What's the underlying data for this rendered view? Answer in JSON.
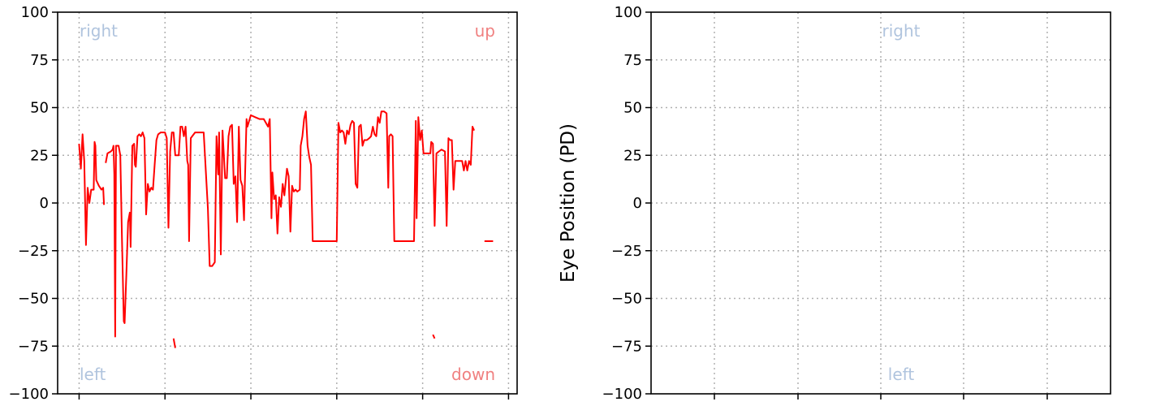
{
  "chart_data": [
    {
      "type": "line",
      "title": "",
      "xlabel": "",
      "ylabel": "",
      "ylim": [
        -100,
        100
      ],
      "xlim": [
        -0.25,
        5.1
      ],
      "yticks": [
        100,
        75,
        50,
        25,
        0,
        -25,
        -50,
        -75,
        -100
      ],
      "ytick_labels": [
        "100",
        "75",
        "50",
        "25",
        "0",
        "−25",
        "−50",
        "−75",
        "−100"
      ],
      "xticks": [
        0,
        1,
        2,
        3,
        4,
        5
      ],
      "grid": true,
      "corner_labels": [
        {
          "text": "right",
          "position": "top-left",
          "color": "#b0c4de"
        },
        {
          "text": "up",
          "position": "top-right",
          "color": "#f08080"
        },
        {
          "text": "left",
          "position": "bottom-left",
          "color": "#b0c4de"
        },
        {
          "text": "down",
          "position": "bottom-right",
          "color": "#f08080"
        }
      ],
      "series": [
        {
          "color": "#ff0000",
          "segments": [
            [
              [
                0.0,
                31
              ],
              [
                0.02,
                18
              ],
              [
                0.04,
                36
              ],
              [
                0.06,
                22
              ],
              [
                0.08,
                -22
              ],
              [
                0.1,
                8
              ],
              [
                0.12,
                0
              ],
              [
                0.14,
                7
              ],
              [
                0.17,
                7
              ],
              [
                0.18,
                32
              ],
              [
                0.19,
                30
              ],
              [
                0.2,
                12
              ],
              [
                0.23,
                9
              ],
              [
                0.26,
                7
              ],
              [
                0.28,
                8
              ],
              [
                0.29,
                -1
              ]
            ],
            [
              [
                0.31,
                21
              ],
              [
                0.33,
                26
              ],
              [
                0.37,
                27
              ],
              [
                0.39,
                28
              ],
              [
                0.4,
                30
              ],
              [
                0.41,
                15
              ],
              [
                0.42,
                -70
              ],
              [
                0.43,
                30
              ],
              [
                0.46,
                30
              ],
              [
                0.48,
                25
              ],
              [
                0.5,
                -20
              ],
              [
                0.52,
                -62
              ],
              [
                0.53,
                -63
              ],
              [
                0.55,
                -38
              ],
              [
                0.57,
                -10
              ],
              [
                0.59,
                -5
              ],
              [
                0.6,
                -23
              ],
              [
                0.62,
                30
              ],
              [
                0.64,
                31
              ],
              [
                0.65,
                20
              ],
              [
                0.66,
                19
              ],
              [
                0.68,
                35
              ],
              [
                0.7,
                36
              ],
              [
                0.72,
                35
              ],
              [
                0.74,
                37
              ],
              [
                0.76,
                34
              ],
              [
                0.78,
                -6
              ],
              [
                0.8,
                10
              ],
              [
                0.82,
                6
              ],
              [
                0.84,
                8
              ],
              [
                0.86,
                7
              ],
              [
                0.88,
                20
              ],
              [
                0.9,
                33
              ],
              [
                0.92,
                36
              ],
              [
                0.95,
                37
              ],
              [
                1.0,
                37
              ],
              [
                1.02,
                34
              ],
              [
                1.04,
                -13
              ],
              [
                1.06,
                27
              ],
              [
                1.08,
                37
              ],
              [
                1.1,
                37
              ],
              [
                1.12,
                25
              ],
              [
                1.14,
                25
              ],
              [
                1.16,
                25
              ],
              [
                1.18,
                40
              ],
              [
                1.2,
                40
              ],
              [
                1.22,
                35
              ],
              [
                1.24,
                40
              ],
              [
                1.26,
                22
              ],
              [
                1.27,
                20
              ],
              [
                1.28,
                -20
              ],
              [
                1.3,
                34
              ],
              [
                1.35,
                37
              ],
              [
                1.4,
                37
              ],
              [
                1.45,
                37
              ],
              [
                1.5,
                -3
              ],
              [
                1.52,
                -33
              ],
              [
                1.55,
                -33
              ],
              [
                1.58,
                -31
              ],
              [
                1.6,
                35
              ],
              [
                1.62,
                15
              ],
              [
                1.63,
                37
              ],
              [
                1.65,
                -27
              ],
              [
                1.67,
                38
              ],
              [
                1.7,
                13
              ],
              [
                1.72,
                13
              ],
              [
                1.74,
                35
              ],
              [
                1.76,
                40
              ],
              [
                1.78,
                41
              ],
              [
                1.8,
                10
              ],
              [
                1.82,
                14
              ],
              [
                1.84,
                -10
              ],
              [
                1.86,
                40
              ],
              [
                1.88,
                12
              ],
              [
                1.9,
                9
              ],
              [
                1.92,
                -9
              ],
              [
                1.93,
                10
              ],
              [
                1.95,
                44
              ],
              [
                1.96,
                40
              ],
              [
                1.98,
                43
              ],
              [
                2.0,
                46
              ],
              [
                2.05,
                45
              ],
              [
                2.1,
                44
              ],
              [
                2.15,
                44
              ],
              [
                2.2,
                40
              ],
              [
                2.22,
                44
              ],
              [
                2.24,
                -8
              ],
              [
                2.25,
                16
              ],
              [
                2.27,
                2
              ],
              [
                2.29,
                4
              ],
              [
                2.31,
                -16
              ],
              [
                2.33,
                3
              ],
              [
                2.35,
                -2
              ],
              [
                2.37,
                10
              ],
              [
                2.39,
                4
              ],
              [
                2.42,
                18
              ],
              [
                2.44,
                14
              ],
              [
                2.46,
                -15
              ],
              [
                2.48,
                9
              ],
              [
                2.5,
                6
              ],
              [
                2.52,
                7
              ],
              [
                2.54,
                6
              ],
              [
                2.57,
                7
              ],
              [
                2.58,
                30
              ],
              [
                2.6,
                35
              ],
              [
                2.62,
                44
              ],
              [
                2.64,
                48
              ],
              [
                2.66,
                30
              ],
              [
                2.68,
                24
              ],
              [
                2.7,
                20
              ],
              [
                2.72,
                -20
              ],
              [
                2.8,
                -20
              ],
              [
                2.9,
                -20
              ],
              [
                2.98,
                -20
              ],
              [
                3.0,
                -20
              ],
              [
                3.02,
                42
              ],
              [
                3.04,
                37
              ],
              [
                3.06,
                38
              ],
              [
                3.08,
                37
              ],
              [
                3.1,
                31
              ],
              [
                3.12,
                38
              ],
              [
                3.14,
                36
              ],
              [
                3.16,
                41
              ],
              [
                3.18,
                43
              ],
              [
                3.2,
                42
              ],
              [
                3.22,
                10
              ],
              [
                3.24,
                8
              ],
              [
                3.26,
                40
              ],
              [
                3.28,
                41
              ],
              [
                3.3,
                30
              ],
              [
                3.32,
                33
              ],
              [
                3.35,
                33
              ],
              [
                3.38,
                34
              ],
              [
                3.4,
                35
              ],
              [
                3.42,
                40
              ],
              [
                3.44,
                36
              ],
              [
                3.46,
                35
              ],
              [
                3.48,
                45
              ],
              [
                3.5,
                42
              ],
              [
                3.52,
                48
              ],
              [
                3.55,
                48
              ],
              [
                3.58,
                47
              ],
              [
                3.6,
                8
              ],
              [
                3.61,
                35
              ],
              [
                3.63,
                36
              ],
              [
                3.65,
                35
              ],
              [
                3.67,
                -20
              ],
              [
                3.75,
                -20
              ],
              [
                3.85,
                -20
              ],
              [
                3.9,
                -20
              ],
              [
                3.92,
                43
              ],
              [
                3.93,
                -8
              ],
              [
                3.95,
                45
              ],
              [
                3.97,
                33
              ],
              [
                3.99,
                38
              ],
              [
                4.01,
                26
              ],
              [
                4.05,
                26
              ],
              [
                4.09,
                26
              ],
              [
                4.1,
                32
              ],
              [
                4.12,
                31
              ],
              [
                4.14,
                -12
              ],
              [
                4.16,
                26
              ],
              [
                4.19,
                27
              ],
              [
                4.22,
                28
              ],
              [
                4.26,
                27
              ],
              [
                4.28,
                -12
              ],
              [
                4.3,
                34
              ],
              [
                4.32,
                33
              ],
              [
                4.34,
                33
              ],
              [
                4.36,
                7
              ],
              [
                4.38,
                22
              ],
              [
                4.42,
                22
              ],
              [
                4.46,
                22
              ],
              [
                4.48,
                17
              ],
              [
                4.5,
                22
              ],
              [
                4.52,
                17
              ],
              [
                4.54,
                22
              ],
              [
                4.56,
                20
              ],
              [
                4.58,
                40
              ],
              [
                4.6,
                38
              ]
            ],
            [
              [
                1.1,
                -71
              ],
              [
                1.12,
                -76
              ]
            ],
            [
              [
                4.12,
                -69
              ],
              [
                4.14,
                -71
              ]
            ],
            [
              [
                4.72,
                -20
              ],
              [
                4.82,
                -20
              ]
            ]
          ]
        }
      ]
    },
    {
      "type": "line",
      "title": "",
      "xlabel": "",
      "ylabel": "Eye Position (PD)",
      "ylim": [
        -100,
        100
      ],
      "yticks": [
        100,
        75,
        50,
        25,
        0,
        -25,
        -50,
        -75,
        -100
      ],
      "ytick_labels": [
        "100",
        "75",
        "50",
        "25",
        "0",
        "−25",
        "−50",
        "−75",
        "−100"
      ],
      "xtick_count": 6,
      "grid": true,
      "corner_labels": [
        {
          "text": "right",
          "position": "top-center",
          "color": "#b0c4de"
        },
        {
          "text": "left",
          "position": "bottom-center",
          "color": "#b0c4de"
        }
      ],
      "series": []
    }
  ]
}
